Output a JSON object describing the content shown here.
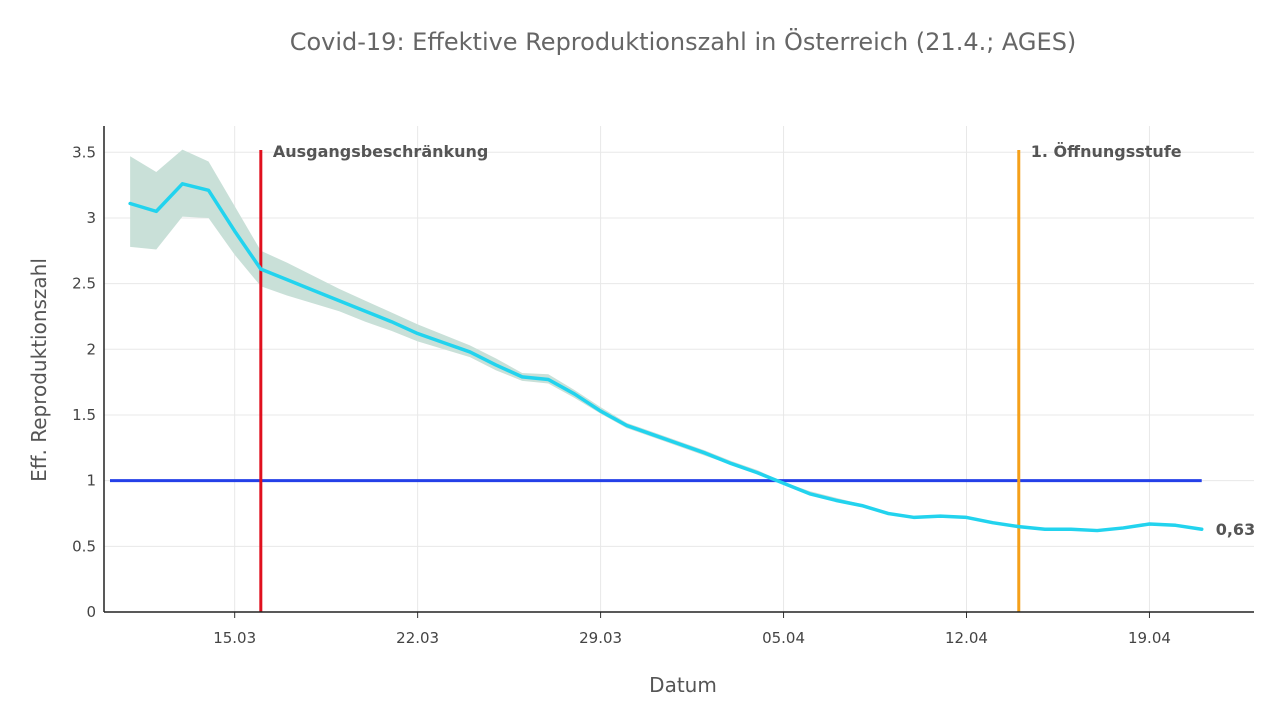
{
  "chart_data": {
    "type": "line",
    "title": "Covid-19: Effektive Reproduktionszahl in Österreich (21.4.; AGES)",
    "xlabel": "Datum",
    "ylabel": "Eff. Reproduktionszahl",
    "ylim": [
      0,
      3.7
    ],
    "xlim": [
      "2020-03-10",
      "2020-04-23"
    ],
    "grid": true,
    "legend": "none",
    "x_ticks": [
      {
        "date": "2020-03-15",
        "label": "15.03"
      },
      {
        "date": "2020-03-22",
        "label": "22.03"
      },
      {
        "date": "2020-03-29",
        "label": "29.03"
      },
      {
        "date": "2020-04-05",
        "label": "05.04"
      },
      {
        "date": "2020-04-12",
        "label": "12.04"
      },
      {
        "date": "2020-04-19",
        "label": "19.04"
      }
    ],
    "y_ticks": [
      {
        "value": 0,
        "label": "0"
      },
      {
        "value": 0.5,
        "label": "0.5"
      },
      {
        "value": 1,
        "label": "1"
      },
      {
        "value": 1.5,
        "label": "1.5"
      },
      {
        "value": 2,
        "label": "2"
      },
      {
        "value": 2.5,
        "label": "2.5"
      },
      {
        "value": 3,
        "label": "3"
      },
      {
        "value": 3.5,
        "label": "3.5"
      }
    ],
    "series": [
      {
        "color": "#22d3ee",
        "x": [
          "2020-03-11",
          "2020-03-12",
          "2020-03-13",
          "2020-03-14",
          "2020-03-15",
          "2020-03-16",
          "2020-03-17",
          "2020-03-18",
          "2020-03-19",
          "2020-03-20",
          "2020-03-21",
          "2020-03-22",
          "2020-03-23",
          "2020-03-24",
          "2020-03-25",
          "2020-03-26",
          "2020-03-27",
          "2020-03-28",
          "2020-03-29",
          "2020-03-30",
          "2020-03-31",
          "2020-04-01",
          "2020-04-02",
          "2020-04-03",
          "2020-04-04",
          "2020-04-05",
          "2020-04-06",
          "2020-04-07",
          "2020-04-08",
          "2020-04-09",
          "2020-04-10",
          "2020-04-11",
          "2020-04-12",
          "2020-04-13",
          "2020-04-14",
          "2020-04-15",
          "2020-04-16",
          "2020-04-17",
          "2020-04-18",
          "2020-04-19",
          "2020-04-20",
          "2020-04-21"
        ],
        "y": [
          3.11,
          3.05,
          3.26,
          3.21,
          2.9,
          2.61,
          2.53,
          2.45,
          2.37,
          2.29,
          2.21,
          2.12,
          2.05,
          1.98,
          1.88,
          1.79,
          1.77,
          1.66,
          1.53,
          1.42,
          1.35,
          1.28,
          1.21,
          1.13,
          1.06,
          0.98,
          0.9,
          0.85,
          0.81,
          0.75,
          0.72,
          0.73,
          0.72,
          0.68,
          0.65,
          0.63,
          0.63,
          0.62,
          0.64,
          0.67,
          0.66,
          0.63
        ],
        "lower": [
          2.78,
          2.76,
          3.01,
          3.0,
          2.72,
          2.48,
          2.41,
          2.35,
          2.29,
          2.21,
          2.14,
          2.06,
          2.0,
          1.94,
          1.84,
          1.76,
          1.74,
          1.63,
          1.51,
          1.4,
          1.33,
          1.26,
          1.19,
          1.12,
          1.05,
          0.97,
          0.89,
          0.84,
          0.8,
          0.74,
          0.71,
          0.72,
          0.71,
          0.67,
          0.64,
          0.62,
          0.62,
          0.61,
          0.63,
          0.66,
          0.65,
          0.62
        ],
        "upper": [
          3.47,
          3.35,
          3.52,
          3.43,
          3.09,
          2.75,
          2.66,
          2.56,
          2.46,
          2.37,
          2.28,
          2.19,
          2.11,
          2.03,
          1.93,
          1.82,
          1.81,
          1.69,
          1.56,
          1.44,
          1.37,
          1.3,
          1.23,
          1.15,
          1.08,
          0.99,
          0.92,
          0.87,
          0.82,
          0.76,
          0.73,
          0.74,
          0.73,
          0.69,
          0.66,
          0.64,
          0.64,
          0.63,
          0.65,
          0.68,
          0.67,
          0.64
        ],
        "band_color": "#c9e0d8"
      }
    ],
    "reference_line": {
      "y": 1,
      "color": "#2440e8"
    },
    "annotations": [
      {
        "date": "2020-03-16",
        "label": "Ausgangsbeschränkung",
        "color": "#e0101e"
      },
      {
        "date": "2020-04-14",
        "label": "1. Öffnungsstufe",
        "color": "#f5a01a"
      }
    ],
    "end_label": "0,63"
  }
}
